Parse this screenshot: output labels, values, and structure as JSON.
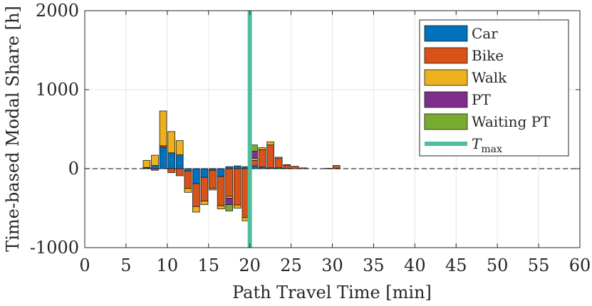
{
  "chart_data": {
    "type": "bar",
    "stacked": true,
    "diverging": true,
    "xlabel": "Path Travel Time [min]",
    "ylabel": "Time-based Modal Share [h]",
    "xlim": [
      0,
      60
    ],
    "ylim": [
      -1000,
      2000
    ],
    "xticks": [
      0,
      5,
      10,
      15,
      20,
      25,
      30,
      35,
      40,
      45,
      50,
      55,
      60
    ],
    "yticks": [
      -1000,
      0,
      1000,
      2000
    ],
    "ytick_labels": [
      "-1000",
      "0",
      "1000",
      "2000"
    ],
    "grid": true,
    "legend_position": "top-right",
    "bar_width_min": 0.85,
    "x": [
      7.5,
      8.5,
      9.5,
      10.5,
      11.5,
      12.5,
      13.5,
      14.5,
      15.5,
      16.5,
      17.5,
      18.5,
      19.5,
      20.5,
      21.5,
      22.5,
      23.5,
      24.5,
      25.5,
      26.5,
      29.5,
      30.5
    ],
    "series": [
      {
        "name": "Car",
        "color": "#0072BD",
        "values": [
          10,
          40,
          270,
          200,
          175,
          -30,
          -190,
          -110,
          -20,
          -100,
          25,
          35,
          25,
          35,
          20,
          10,
          10,
          5,
          0,
          0,
          0,
          5
        ]
      },
      {
        "name": "Bike",
        "color": "#D95319",
        "values": [
          5,
          -20,
          20,
          -50,
          -90,
          -220,
          -290,
          -300,
          -230,
          -370,
          -350,
          -460,
          -620,
          70,
          220,
          290,
          120,
          40,
          30,
          10,
          5,
          35
        ]
      },
      {
        "name": "Walk",
        "color": "#EDB120",
        "values": [
          90,
          130,
          440,
          270,
          180,
          -50,
          -70,
          -45,
          -20,
          -40,
          -25,
          -40,
          -40,
          25,
          25,
          40,
          15,
          5,
          0,
          0,
          0,
          0
        ]
      },
      {
        "name": "PT",
        "color": "#7E2F8E",
        "values": [
          0,
          0,
          0,
          0,
          0,
          0,
          0,
          0,
          0,
          0,
          -80,
          0,
          0,
          90,
          0,
          0,
          0,
          0,
          0,
          0,
          0,
          0
        ]
      },
      {
        "name": "Waiting PT",
        "color": "#77AC30",
        "values": [
          0,
          0,
          0,
          0,
          0,
          0,
          0,
          0,
          0,
          0,
          -80,
          0,
          0,
          80,
          0,
          0,
          0,
          0,
          0,
          0,
          0,
          0
        ]
      }
    ],
    "vertical_line": {
      "name": "T",
      "subscript": "max",
      "x": 20,
      "color": "#4DBEA0"
    },
    "zero_line_color": "#333333"
  }
}
